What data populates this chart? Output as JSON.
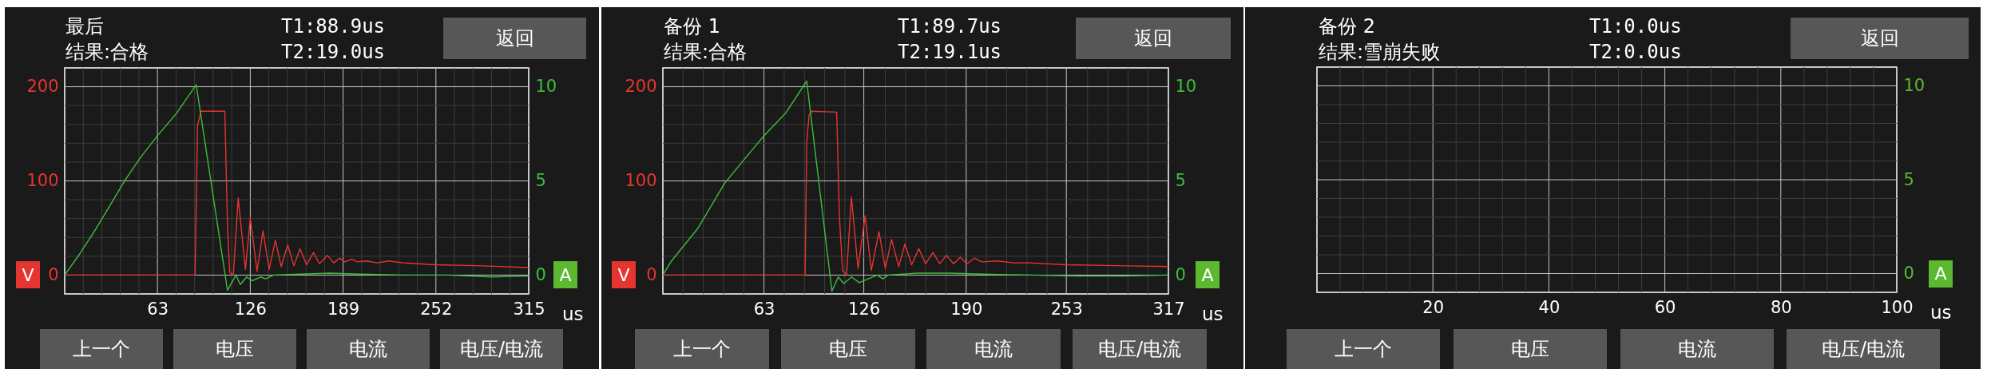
{
  "chart_data": [
    {
      "type": "line",
      "title": "最后",
      "subtitle": "结果:合格",
      "annotations": [
        "T1:88.9us",
        "T2:19.0us",
        "返回",
        "上一个",
        "电压",
        "电流",
        "电压/电流"
      ],
      "xlabel": "us",
      "ylabel": "V",
      "y2label": "A",
      "grid": true,
      "xlim": [
        0,
        315
      ],
      "xticks": [
        {
          "value": 12.6,
          "label": null
        },
        {
          "value": 25.2,
          "label": null
        },
        {
          "value": 37.8,
          "label": null
        },
        {
          "value": 50.4,
          "label": null
        },
        63,
        {
          "value": 75.6,
          "label": null
        },
        {
          "value": 88.2,
          "label": null
        },
        {
          "value": 100.8,
          "label": null
        },
        {
          "value": 113.4,
          "label": null
        },
        126,
        {
          "value": 138.6,
          "label": null
        },
        {
          "value": 151.2,
          "label": null
        },
        {
          "value": 163.8,
          "label": null
        },
        {
          "value": 176.4,
          "label": null
        },
        189,
        {
          "value": 201.6,
          "label": null
        },
        {
          "value": 214.2,
          "label": null
        },
        {
          "value": 226.8,
          "label": null
        },
        {
          "value": 239.4,
          "label": null
        },
        252,
        {
          "value": 264.6,
          "label": null
        },
        {
          "value": 277.2,
          "label": null
        },
        {
          "value": 289.8,
          "label": null
        },
        {
          "value": 302.4,
          "label": null
        },
        315
      ],
      "ylim": [
        -20,
        220
      ],
      "yticks": [
        0,
        {
          "value": 20,
          "label": null
        },
        {
          "value": 40,
          "label": null
        },
        {
          "value": 60,
          "label": null
        },
        {
          "value": 80,
          "label": null
        },
        100,
        {
          "value": 120,
          "label": null
        },
        {
          "value": 140,
          "label": null
        },
        {
          "value": 160,
          "label": null
        },
        {
          "value": 180,
          "label": null
        },
        200
      ],
      "y2lim": [
        -1,
        11
      ],
      "y2ticks": [
        0,
        5,
        10
      ],
      "series": [
        {
          "color": "#e53530",
          "axis": "y",
          "x": [
            0,
            40,
            88.5,
            90.2,
            92.6,
            108.7,
            110.5,
            112,
            114.5,
            117.8,
            122.7,
            126,
            130.6,
            134.6,
            138.8,
            143,
            147,
            151.4,
            155.6,
            159.8,
            164.2,
            168.9,
            172.9,
            178.4,
            182.6,
            186.6,
            190.3,
            194.8,
            198.5,
            205,
            212,
            220,
            230,
            252,
            280,
            315
          ],
          "values": [
            0,
            0,
            0,
            159,
            174,
            174,
            54,
            3,
            0,
            82,
            6,
            61,
            4,
            47,
            6,
            37,
            9,
            32,
            10,
            28,
            11,
            24,
            12,
            21,
            13,
            18,
            14,
            17,
            14,
            15,
            13,
            15,
            13,
            11,
            10,
            8
          ]
        },
        {
          "color": "#3cbf3c",
          "axis": "y2",
          "x": [
            0,
            10,
            20,
            30,
            41.5,
            52,
            63,
            76,
            89.3,
            110.5,
            116.3,
            119.2,
            123.6,
            127.3,
            133,
            136.4,
            141.9,
            160,
            180,
            200,
            230,
            260,
            290,
            315
          ],
          "values": [
            0,
            1.1,
            2.3,
            3.6,
            5.1,
            6.3,
            7.4,
            8.6,
            10.1,
            -0.8,
            0,
            -0.5,
            -0.1,
            -0.3,
            -0.1,
            -0.2,
            0,
            0.05,
            0.1,
            0.05,
            0,
            0,
            -0.1,
            -0.05
          ]
        }
      ]
    },
    {
      "type": "line",
      "title": "备份 1",
      "subtitle": "结果:合格",
      "annotations": [
        "T1:89.7us",
        "T2:19.1us",
        "返回",
        "上一个",
        "电压",
        "电流",
        "电压/电流"
      ],
      "xlabel": "us",
      "ylabel": "V",
      "y2label": "A",
      "grid": true,
      "xlim": [
        0,
        317
      ],
      "xticks": [
        {
          "value": 12.68,
          "label": null
        },
        {
          "value": 25.36,
          "label": null
        },
        {
          "value": 38.04,
          "label": null
        },
        {
          "value": 50.72,
          "label": null
        },
        {
          "value": 63.4,
          "label": "63"
        },
        {
          "value": 76.08,
          "label": null
        },
        {
          "value": 88.76,
          "label": null
        },
        {
          "value": 101.44,
          "label": null
        },
        {
          "value": 114.12,
          "label": null
        },
        126,
        {
          "value": 139.48,
          "label": null
        },
        {
          "value": 152.16,
          "label": null
        },
        {
          "value": 164.84,
          "label": null
        },
        {
          "value": 177.52,
          "label": null
        },
        {
          "value": 190.2,
          "label": "190"
        },
        {
          "value": 202.88,
          "label": null
        },
        {
          "value": 215.56,
          "label": null
        },
        {
          "value": 228.24,
          "label": null
        },
        {
          "value": 240.92,
          "label": null
        },
        253,
        {
          "value": 266.28,
          "label": null
        },
        {
          "value": 278.96,
          "label": null
        },
        {
          "value": 291.64,
          "label": null
        },
        {
          "value": 304.32,
          "label": null
        },
        317
      ],
      "ylim": [
        -20,
        220
      ],
      "yticks": [
        0,
        {
          "value": 20,
          "label": null
        },
        {
          "value": 40,
          "label": null
        },
        {
          "value": 60,
          "label": null
        },
        {
          "value": 80,
          "label": null
        },
        100,
        {
          "value": 120,
          "label": null
        },
        {
          "value": 140,
          "label": null
        },
        {
          "value": 160,
          "label": null
        },
        {
          "value": 180,
          "label": null
        },
        200
      ],
      "y2lim": [
        -1,
        11
      ],
      "y2ticks": [
        0,
        5,
        10
      ],
      "series": [
        {
          "color": "#e53530",
          "axis": "y",
          "x": [
            0,
            40,
            89.2,
            90.2,
            91.7,
            93.4,
            109,
            110.7,
            112.7,
            115.2,
            118.2,
            122.4,
            126.8,
            130.7,
            135.5,
            139.5,
            143.4,
            147.9,
            151.8,
            156,
            160.5,
            164.7,
            169.4,
            173.6,
            177.8,
            182.3,
            186.5,
            190.7,
            195.4,
            200,
            210,
            220,
            230,
            253,
            285,
            317
          ],
          "values": [
            0,
            0,
            0,
            141,
            170,
            174,
            173,
            62,
            5,
            0,
            83,
            7,
            63,
            5,
            46,
            7,
            38,
            9,
            33,
            11,
            28,
            12,
            24,
            12,
            21,
            12,
            19,
            12,
            18,
            14,
            15,
            13,
            13,
            11,
            10,
            9
          ]
        },
        {
          "color": "#3cbf3c",
          "axis": "y2",
          "x": [
            0,
            5.4,
            22.1,
            38.9,
            63.4,
            77,
            90.2,
            106,
            110,
            113.4,
            118.4,
            123.1,
            134.5,
            137.9,
            141.2,
            160,
            180,
            200,
            230,
            260,
            290,
            317
          ],
          "values": [
            0,
            0.75,
            2.5,
            4.9,
            7.4,
            8.6,
            10.3,
            -0.85,
            -0.1,
            -0.45,
            -0.1,
            -0.4,
            0,
            -0.2,
            0,
            0.1,
            0.1,
            0.05,
            0,
            -0.05,
            -0.05,
            0
          ]
        }
      ]
    },
    {
      "type": "line",
      "title": "备份 2",
      "subtitle": "结果:雪崩失败",
      "annotations": [
        "T1:0.0us",
        "T2:0.0us",
        "返回",
        "上一个",
        "电压",
        "电流",
        "电压/电流"
      ],
      "xlabel": "us",
      "y2label": "A",
      "grid": true,
      "xlim": [
        0,
        100
      ],
      "xticks": [
        {
          "value": 4,
          "label": null
        },
        {
          "value": 8,
          "label": null
        },
        {
          "value": 12,
          "label": null
        },
        {
          "value": 16,
          "label": null
        },
        20,
        {
          "value": 24,
          "label": null
        },
        {
          "value": 28,
          "label": null
        },
        {
          "value": 32,
          "label": null
        },
        {
          "value": 36,
          "label": null
        },
        40,
        {
          "value": 44,
          "label": null
        },
        {
          "value": 48,
          "label": null
        },
        {
          "value": 52,
          "label": null
        },
        {
          "value": 56,
          "label": null
        },
        60,
        {
          "value": 64,
          "label": null
        },
        {
          "value": 68,
          "label": null
        },
        {
          "value": 72,
          "label": null
        },
        {
          "value": 76,
          "label": null
        },
        80,
        {
          "value": 84,
          "label": null
        },
        {
          "value": 88,
          "label": null
        },
        {
          "value": 92,
          "label": null
        },
        {
          "value": 96,
          "label": null
        },
        100
      ],
      "y2lim": [
        -1,
        11
      ],
      "y2ticks": [
        0,
        {
          "value": 1,
          "label": null
        },
        {
          "value": 2,
          "label": null
        },
        {
          "value": 3,
          "label": null
        },
        {
          "value": 4,
          "label": null
        },
        5,
        {
          "value": 6,
          "label": null
        },
        {
          "value": 7,
          "label": null
        },
        {
          "value": 8,
          "label": null
        },
        {
          "value": 9,
          "label": null
        },
        10
      ]
    }
  ]
}
